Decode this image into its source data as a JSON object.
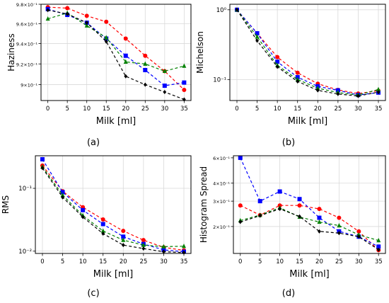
{
  "panels": [
    {
      "id": "a",
      "label": "(a)",
      "chart_data": {
        "type": "line",
        "x": [
          0,
          5,
          10,
          15,
          20,
          25,
          30,
          35
        ],
        "xlabel": "Milk [ml]",
        "ylabel": "Haziness",
        "yscale": "log",
        "ylim": [
          0.885,
          0.98
        ],
        "grid": true,
        "yticks": [
          {
            "value": 0.98,
            "label": "9.8×10⁻¹"
          },
          {
            "value": 0.96,
            "label": "9.6×10⁻¹"
          },
          {
            "value": 0.94,
            "label": "9.4×10⁻¹"
          },
          {
            "value": 0.92,
            "label": "9.2×10⁻¹"
          },
          {
            "value": 0.9,
            "label": "9×10⁻¹"
          }
        ],
        "series": [
          {
            "color": "#ff0000",
            "marker": "circle",
            "values": [
              0.977,
              0.976,
              0.968,
              0.962,
              0.945,
              0.928,
              0.913,
              0.895
            ]
          },
          {
            "color": "#0000ff",
            "marker": "square",
            "values": [
              0.975,
              0.969,
              0.961,
              0.945,
              0.928,
              0.914,
              0.899,
              0.902
            ]
          },
          {
            "color": "#008000",
            "marker": "triangle",
            "values": [
              0.965,
              0.971,
              0.958,
              0.946,
              0.922,
              0.92,
              0.913,
              0.918
            ]
          },
          {
            "color": "#000000",
            "marker": "diamond",
            "values": [
              0.974,
              0.97,
              0.961,
              0.942,
              0.908,
              0.9,
              0.893,
              0.886
            ]
          }
        ]
      }
    },
    {
      "id": "b",
      "label": "(b)",
      "chart_data": {
        "type": "line",
        "x": [
          0,
          5,
          10,
          15,
          20,
          25,
          30,
          35
        ],
        "xlabel": "Milk [ml]",
        "ylabel": "Michelson",
        "yscale": "log",
        "ylim": [
          0.05,
          1.2
        ],
        "grid": true,
        "yticks": [
          {
            "value": 1.0,
            "label": "10⁰"
          },
          {
            "value": 0.1,
            "label": "10⁻¹"
          }
        ],
        "series": [
          {
            "color": "#ff0000",
            "marker": "circle",
            "values": [
              1.0,
              0.46,
              0.21,
              0.125,
              0.087,
              0.071,
              0.063,
              0.069
            ]
          },
          {
            "color": "#0000ff",
            "marker": "square",
            "values": [
              1.0,
              0.46,
              0.18,
              0.108,
              0.08,
              0.07,
              0.06,
              0.065
            ]
          },
          {
            "color": "#008000",
            "marker": "triangle",
            "values": [
              1.0,
              0.41,
              0.16,
              0.1,
              0.075,
              0.065,
              0.06,
              0.072
            ]
          },
          {
            "color": "#000000",
            "marker": "diamond",
            "values": [
              1.0,
              0.36,
              0.152,
              0.094,
              0.07,
              0.062,
              0.058,
              0.066
            ]
          }
        ]
      }
    },
    {
      "id": "c",
      "label": "(c)",
      "chart_data": {
        "type": "line",
        "x": [
          0,
          5,
          10,
          15,
          20,
          25,
          30,
          35
        ],
        "xlabel": "Milk [ml]",
        "ylabel": "RMS",
        "yscale": "log",
        "ylim": [
          0.0092,
          0.33
        ],
        "grid": true,
        "yticks": [
          {
            "value": 0.1,
            "label": "10⁻¹"
          },
          {
            "value": 0.01,
            "label": "10⁻²"
          }
        ],
        "series": [
          {
            "color": "#ff0000",
            "marker": "circle",
            "values": [
              0.23,
              0.09,
              0.05,
              0.032,
              0.021,
              0.015,
              0.0115,
              0.0103
            ]
          },
          {
            "color": "#0000ff",
            "marker": "square",
            "values": [
              0.29,
              0.087,
              0.045,
              0.027,
              0.017,
              0.013,
              0.0105,
              0.0098
            ]
          },
          {
            "color": "#008000",
            "marker": "triangle",
            "values": [
              0.22,
              0.078,
              0.037,
              0.021,
              0.015,
              0.0125,
              0.0118,
              0.012
            ]
          },
          {
            "color": "#000000",
            "marker": "diamond",
            "values": [
              0.21,
              0.072,
              0.035,
              0.019,
              0.0125,
              0.011,
              0.0098,
              0.0095
            ]
          }
        ]
      }
    },
    {
      "id": "d",
      "label": "(d)",
      "chart_data": {
        "type": "line",
        "x": [
          0,
          5,
          10,
          15,
          20,
          25,
          30,
          35
        ],
        "xlabel": "Milk [ml]",
        "ylabel": "Histogram Spread",
        "yscale": "log",
        "ylim": [
          0.13,
          0.62
        ],
        "grid": true,
        "yticks": [
          {
            "value": 0.6,
            "label": "6×10⁻¹"
          },
          {
            "value": 0.4,
            "label": "4×10⁻¹"
          },
          {
            "value": 0.3,
            "label": "3×10⁻¹"
          },
          {
            "value": 0.2,
            "label": "2×10⁻¹"
          }
        ],
        "series": [
          {
            "color": "#ff0000",
            "marker": "circle",
            "values": [
              0.28,
              0.24,
              0.28,
              0.28,
              0.265,
              0.23,
              0.185,
              0.137
            ]
          },
          {
            "color": "#0000ff",
            "marker": "square",
            "values": [
              0.6,
              0.3,
              0.35,
              0.31,
              0.23,
              0.185,
              0.17,
              0.145
            ]
          },
          {
            "color": "#008000",
            "marker": "triangle",
            "values": [
              0.22,
              0.24,
              0.27,
              0.233,
              0.215,
              0.203,
              0.175,
              0.16
            ]
          },
          {
            "color": "#000000",
            "marker": "diamond",
            "values": [
              0.215,
              0.238,
              0.265,
              0.235,
              0.185,
              0.18,
              0.17,
              0.138
            ]
          }
        ]
      }
    }
  ]
}
